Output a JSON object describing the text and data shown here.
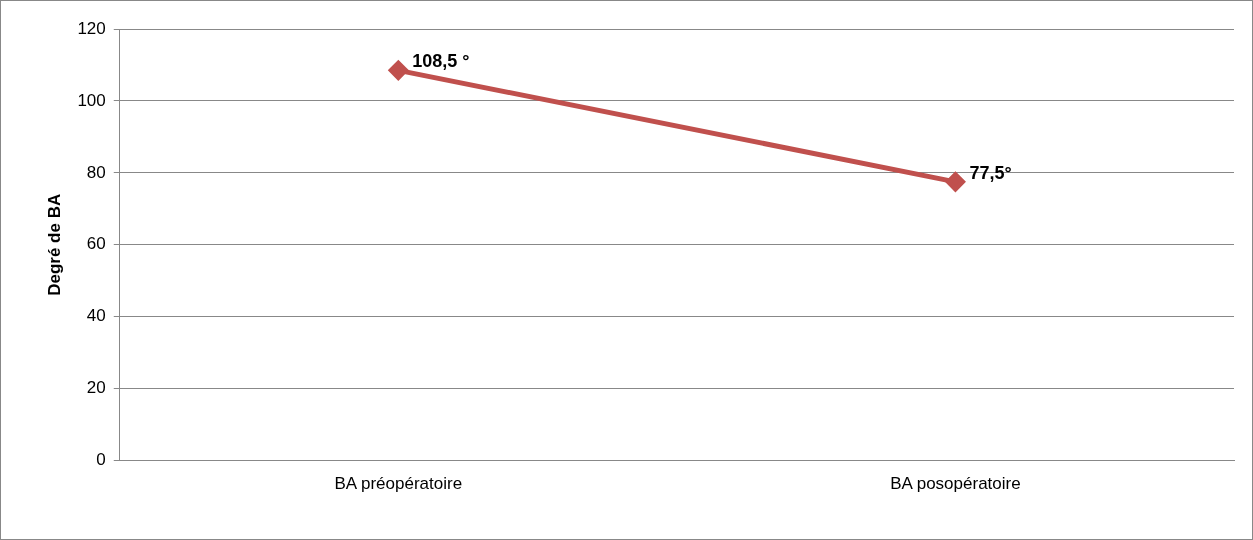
{
  "chart_data": {
    "type": "line",
    "ylabel": "Degré de BA",
    "categories": [
      "BA préopératoire",
      "BA posopératoire"
    ],
    "series": [
      {
        "color": "#c0504d",
        "values": [
          108.5,
          77.5
        ],
        "value_labels": [
          "108,5 °",
          "77,5°"
        ]
      }
    ],
    "ylim": [
      0,
      120
    ],
    "yticks": [
      0,
      20,
      40,
      60,
      80,
      100,
      120
    ],
    "grid": "y",
    "legend": false,
    "marker": "diamond",
    "line_style": "solid"
  }
}
